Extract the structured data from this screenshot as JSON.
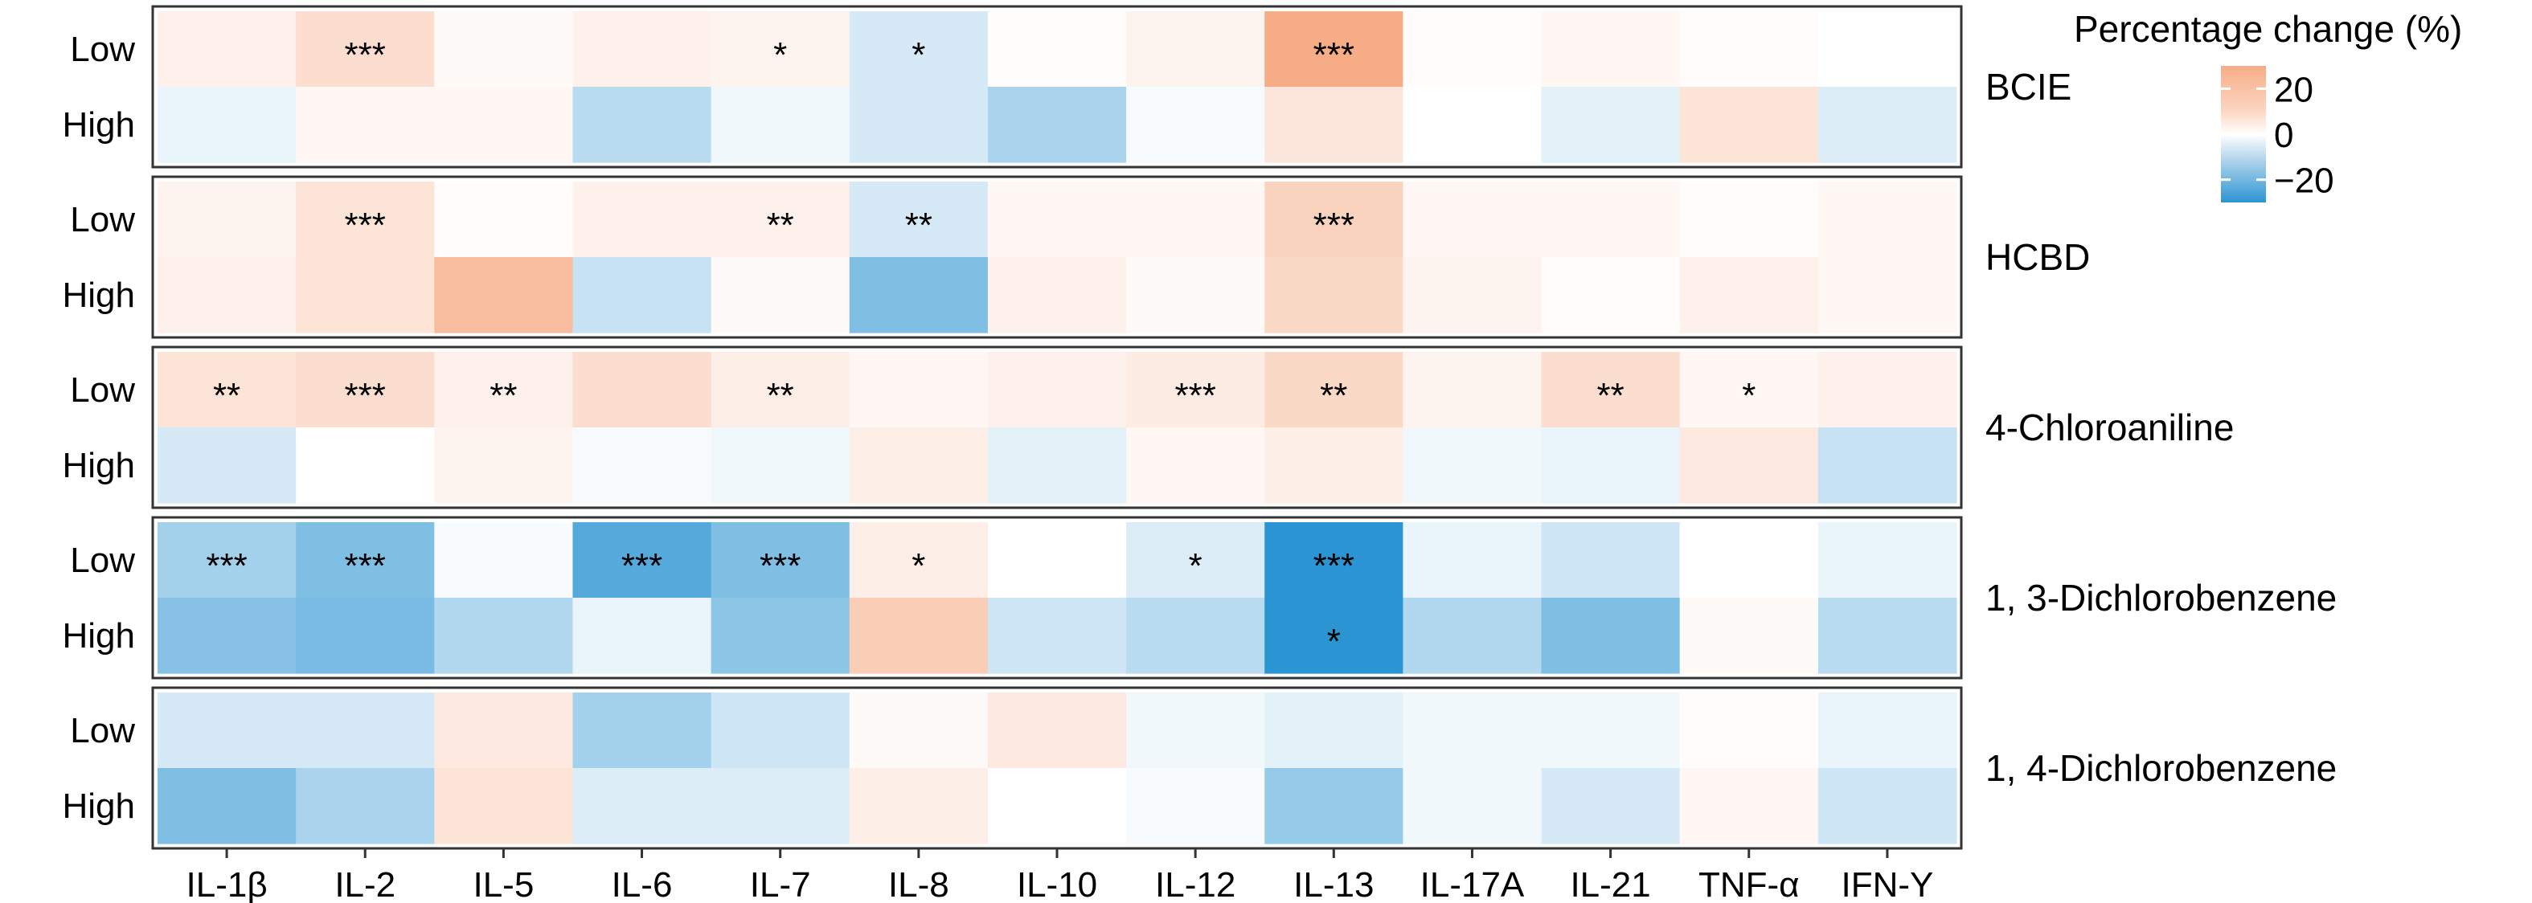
{
  "chart_data": {
    "type": "heatmap",
    "title": "",
    "xlabel": "",
    "ylabel": "",
    "categories": [
      "IL-1β",
      "IL-2",
      "IL-5",
      "IL-6",
      "IL-7",
      "IL-8",
      "IL-10",
      "IL-12",
      "IL-13",
      "IL-17A",
      "IL-21",
      "TNF-α",
      "IFN-Y"
    ],
    "rows": [
      "Low",
      "High"
    ],
    "legend": {
      "title": "Percentage change (%)",
      "ticks": [
        "20",
        "0",
        "−20"
      ],
      "tick_values": [
        20,
        0,
        -20
      ],
      "range": [
        -30,
        30
      ],
      "placement": "top-right",
      "colors": {
        "negative": "#2b94d2",
        "zero": "#ffffff",
        "positive": "#f6ad86"
      }
    },
    "panels": [
      {
        "name": "BCIE",
        "values": {
          "Low": [
            5,
            12,
            2,
            5,
            4,
            -6,
            1,
            4,
            30,
            1,
            3,
            1,
            0
          ],
          "High": [
            -3,
            3,
            3,
            -10,
            -2,
            -6,
            -12,
            -1,
            9,
            0,
            -4,
            10,
            -5
          ]
        },
        "significance": {
          "Low": [
            "",
            "***",
            "",
            "",
            "*",
            "*",
            "",
            "",
            "***",
            "",
            "",
            "",
            ""
          ],
          "High": [
            "",
            "",
            "",
            "",
            "",
            "",
            "",
            "",
            "",
            "",
            "",
            "",
            ""
          ]
        }
      },
      {
        "name": "HCBD",
        "values": {
          "Low": [
            4,
            10,
            1,
            5,
            5,
            -6,
            3,
            3,
            16,
            3,
            3,
            1,
            3
          ],
          "High": [
            5,
            10,
            24,
            -8,
            2,
            -18,
            5,
            2,
            14,
            4,
            1,
            5,
            3
          ]
        },
        "significance": {
          "Low": [
            "",
            "***",
            "",
            "",
            "**",
            "**",
            "",
            "",
            "***",
            "",
            "",
            "",
            ""
          ],
          "High": [
            "",
            "",
            "",
            "",
            "",
            "",
            "",
            "",
            "",
            "",
            "",
            "",
            ""
          ]
        }
      },
      {
        "name": "4-Chloroaniline",
        "values": {
          "Low": [
            10,
            12,
            5,
            12,
            6,
            3,
            5,
            7,
            14,
            4,
            12,
            3,
            5
          ],
          "High": [
            -6,
            0,
            4,
            -1,
            -2,
            6,
            -4,
            3,
            6,
            -2,
            -3,
            8,
            -8
          ]
        },
        "significance": {
          "Low": [
            "**",
            "***",
            "**",
            "",
            "**",
            "",
            "",
            "***",
            "**",
            "",
            "**",
            "*",
            ""
          ],
          "High": [
            "",
            "",
            "",
            "",
            "",
            "",
            "",
            "",
            "",
            "",
            "",
            "",
            ""
          ]
        }
      },
      {
        "name": "1, 3-Dichlorobenzene",
        "values": {
          "Low": [
            -13,
            -18,
            -1,
            -24,
            -18,
            6,
            0,
            -5,
            -30,
            -3,
            -7,
            0,
            -3
          ],
          "High": [
            -17,
            -19,
            -11,
            -3,
            -16,
            18,
            -7,
            -10,
            -35,
            -11,
            -18,
            2,
            -10
          ]
        },
        "significance": {
          "Low": [
            "***",
            "***",
            "",
            "***",
            "***",
            "*",
            "",
            "*",
            "***",
            "",
            "",
            "",
            ""
          ],
          "High": [
            "",
            "",
            "",
            "",
            "",
            "",
            "",
            "",
            "*",
            "",
            "",
            "",
            ""
          ]
        }
      },
      {
        "name": "1, 4-Dichlorobenzene",
        "values": {
          "Low": [
            -6,
            -6,
            8,
            -13,
            -7,
            2,
            8,
            -2,
            -4,
            -2,
            -2,
            1,
            -3
          ],
          "High": [
            -18,
            -12,
            10,
            -5,
            -5,
            6,
            0,
            -1,
            -15,
            -2,
            -6,
            3,
            -7
          ]
        },
        "significance": {
          "Low": [
            "",
            "",
            "",
            "",
            "",
            "",
            "",
            "",
            "",
            "",
            "",
            "",
            ""
          ],
          "High": [
            "",
            "",
            "",
            "",
            "",
            "",
            "",
            "",
            "",
            "",
            "",
            "",
            ""
          ]
        }
      }
    ]
  }
}
